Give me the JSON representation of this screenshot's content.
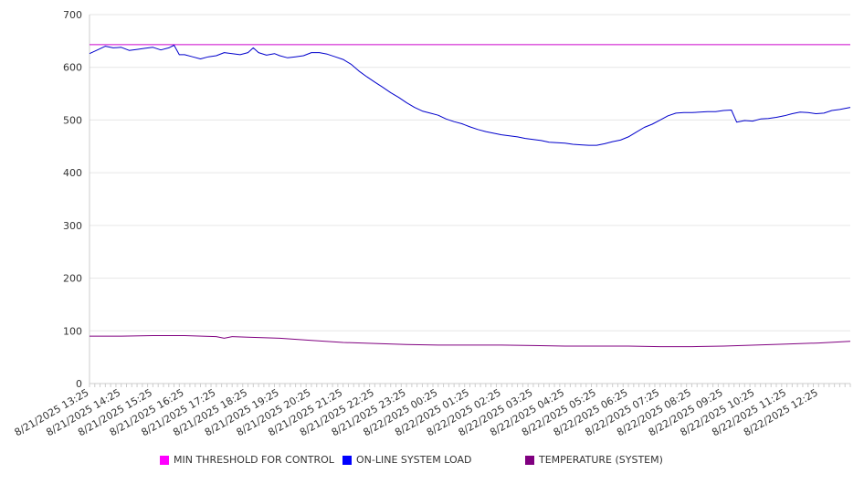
{
  "chart_data": {
    "type": "line",
    "title": "",
    "xlabel": "",
    "ylabel": "",
    "ylim": [
      0,
      700
    ],
    "y_ticks": [
      0,
      100,
      200,
      300,
      400,
      500,
      600,
      700
    ],
    "grid": "horizontal",
    "legend_position": "bottom",
    "x_tick_labels": [
      "8/21/2025 13:25",
      "8/21/2025 14:25",
      "8/21/2025 15:25",
      "8/21/2025 16:25",
      "8/21/2025 17:25",
      "8/21/2025 18:25",
      "8/21/2025 19:25",
      "8/21/2025 20:25",
      "8/21/2025 21:25",
      "8/21/2025 22:25",
      "8/21/2025 23:25",
      "8/22/2025 00:25",
      "8/22/2025 01:25",
      "8/22/2025 02:25",
      "8/22/2025 03:25",
      "8/22/2025 04:25",
      "8/22/2025 05:25",
      "8/22/2025 06:25",
      "8/22/2025 07:25",
      "8/22/2025 08:25",
      "8/22/2025 09:25",
      "8/22/2025 10:25",
      "8/22/2025 11:25",
      "8/22/2025 12:25"
    ],
    "series": [
      {
        "name": "MIN THRESHOLD FOR CONTROL",
        "color": "#cc00cc",
        "legend_color": "#ff00ff",
        "points": [
          [
            "8/21/2025 13:25",
            643
          ],
          [
            "8/22/2025 13:25",
            643
          ]
        ]
      },
      {
        "name": "ON-LINE SYSTEM LOAD",
        "color": "#0000cc",
        "legend_color": "#0000ff",
        "points": [
          [
            "8/21/2025 13:25",
            626
          ],
          [
            "8/21/2025 13:40",
            633
          ],
          [
            "8/21/2025 13:55",
            640
          ],
          [
            "8/21/2025 14:10",
            637
          ],
          [
            "8/21/2025 14:25",
            638
          ],
          [
            "8/21/2025 14:40",
            632
          ],
          [
            "8/21/2025 14:55",
            634
          ],
          [
            "8/21/2025 15:10",
            636
          ],
          [
            "8/21/2025 15:25",
            638
          ],
          [
            "8/21/2025 15:40",
            633
          ],
          [
            "8/21/2025 15:55",
            637
          ],
          [
            "8/21/2025 16:05",
            642
          ],
          [
            "8/21/2025 16:15",
            624
          ],
          [
            "8/21/2025 16:25",
            624
          ],
          [
            "8/21/2025 16:40",
            620
          ],
          [
            "8/21/2025 16:55",
            616
          ],
          [
            "8/21/2025 17:10",
            620
          ],
          [
            "8/21/2025 17:25",
            622
          ],
          [
            "8/21/2025 17:40",
            628
          ],
          [
            "8/21/2025 17:55",
            626
          ],
          [
            "8/21/2025 18:10",
            624
          ],
          [
            "8/21/2025 18:25",
            628
          ],
          [
            "8/21/2025 18:35",
            637
          ],
          [
            "8/21/2025 18:45",
            628
          ],
          [
            "8/21/2025 19:00",
            623
          ],
          [
            "8/21/2025 19:15",
            626
          ],
          [
            "8/21/2025 19:25",
            622
          ],
          [
            "8/21/2025 19:40",
            618
          ],
          [
            "8/21/2025 19:55",
            620
          ],
          [
            "8/21/2025 20:10",
            622
          ],
          [
            "8/21/2025 20:25",
            628
          ],
          [
            "8/21/2025 20:40",
            628
          ],
          [
            "8/21/2025 20:55",
            625
          ],
          [
            "8/21/2025 21:10",
            620
          ],
          [
            "8/21/2025 21:25",
            615
          ],
          [
            "8/21/2025 21:40",
            606
          ],
          [
            "8/21/2025 21:55",
            593
          ],
          [
            "8/21/2025 22:10",
            582
          ],
          [
            "8/21/2025 22:25",
            572
          ],
          [
            "8/21/2025 22:40",
            562
          ],
          [
            "8/21/2025 22:55",
            552
          ],
          [
            "8/21/2025 23:10",
            543
          ],
          [
            "8/21/2025 23:25",
            533
          ],
          [
            "8/21/2025 23:40",
            524
          ],
          [
            "8/21/2025 23:55",
            517
          ],
          [
            "8/22/2025 00:10",
            513
          ],
          [
            "8/22/2025 00:25",
            509
          ],
          [
            "8/22/2025 00:40",
            502
          ],
          [
            "8/22/2025 00:55",
            497
          ],
          [
            "8/22/2025 01:10",
            493
          ],
          [
            "8/22/2025 01:25",
            487
          ],
          [
            "8/22/2025 01:40",
            482
          ],
          [
            "8/22/2025 01:55",
            478
          ],
          [
            "8/22/2025 02:10",
            475
          ],
          [
            "8/22/2025 02:25",
            472
          ],
          [
            "8/22/2025 02:40",
            470
          ],
          [
            "8/22/2025 02:55",
            468
          ],
          [
            "8/22/2025 03:10",
            465
          ],
          [
            "8/22/2025 03:25",
            463
          ],
          [
            "8/22/2025 03:40",
            461
          ],
          [
            "8/22/2025 03:55",
            458
          ],
          [
            "8/22/2025 04:10",
            457
          ],
          [
            "8/22/2025 04:25",
            456
          ],
          [
            "8/22/2025 04:40",
            454
          ],
          [
            "8/22/2025 04:55",
            453
          ],
          [
            "8/22/2025 05:10",
            452
          ],
          [
            "8/22/2025 05:25",
            452
          ],
          [
            "8/22/2025 05:40",
            455
          ],
          [
            "8/22/2025 05:55",
            459
          ],
          [
            "8/22/2025 06:10",
            462
          ],
          [
            "8/22/2025 06:25",
            468
          ],
          [
            "8/22/2025 06:40",
            477
          ],
          [
            "8/22/2025 06:55",
            486
          ],
          [
            "8/22/2025 07:10",
            492
          ],
          [
            "8/22/2025 07:25",
            500
          ],
          [
            "8/22/2025 07:40",
            508
          ],
          [
            "8/22/2025 07:55",
            513
          ],
          [
            "8/22/2025 08:10",
            514
          ],
          [
            "8/22/2025 08:25",
            514
          ],
          [
            "8/22/2025 08:40",
            515
          ],
          [
            "8/22/2025 08:55",
            516
          ],
          [
            "8/22/2025 09:10",
            516
          ],
          [
            "8/22/2025 09:25",
            518
          ],
          [
            "8/22/2025 09:40",
            519
          ],
          [
            "8/22/2025 09:50",
            496
          ],
          [
            "8/22/2025 10:05",
            499
          ],
          [
            "8/22/2025 10:20",
            498
          ],
          [
            "8/22/2025 10:35",
            502
          ],
          [
            "8/22/2025 10:50",
            503
          ],
          [
            "8/22/2025 11:05",
            505
          ],
          [
            "8/22/2025 11:20",
            508
          ],
          [
            "8/22/2025 11:35",
            512
          ],
          [
            "8/22/2025 11:50",
            515
          ],
          [
            "8/22/2025 12:05",
            514
          ],
          [
            "8/22/2025 12:20",
            512
          ],
          [
            "8/22/2025 12:35",
            513
          ],
          [
            "8/22/2025 12:50",
            518
          ],
          [
            "8/22/2025 13:05",
            520
          ],
          [
            "8/22/2025 13:25",
            524
          ]
        ]
      },
      {
        "name": "TEMPERATURE (SYSTEM)",
        "color": "#800080",
        "legend_color": "#800080",
        "points": [
          [
            "8/21/2025 13:25",
            90
          ],
          [
            "8/21/2025 14:25",
            90
          ],
          [
            "8/21/2025 15:25",
            91
          ],
          [
            "8/21/2025 16:25",
            91
          ],
          [
            "8/21/2025 17:25",
            89
          ],
          [
            "8/21/2025 17:40",
            86
          ],
          [
            "8/21/2025 17:55",
            89
          ],
          [
            "8/21/2025 18:25",
            88
          ],
          [
            "8/21/2025 19:25",
            86
          ],
          [
            "8/21/2025 20:25",
            82
          ],
          [
            "8/21/2025 21:25",
            78
          ],
          [
            "8/21/2025 22:25",
            76
          ],
          [
            "8/21/2025 23:25",
            74
          ],
          [
            "8/22/2025 00:25",
            73
          ],
          [
            "8/22/2025 01:25",
            73
          ],
          [
            "8/22/2025 02:25",
            73
          ],
          [
            "8/22/2025 03:25",
            72
          ],
          [
            "8/22/2025 04:25",
            71
          ],
          [
            "8/22/2025 05:25",
            71
          ],
          [
            "8/22/2025 06:25",
            71
          ],
          [
            "8/22/2025 07:25",
            70
          ],
          [
            "8/22/2025 08:25",
            70
          ],
          [
            "8/22/2025 09:25",
            71
          ],
          [
            "8/22/2025 10:25",
            73
          ],
          [
            "8/22/2025 11:25",
            75
          ],
          [
            "8/22/2025 12:25",
            77
          ],
          [
            "8/22/2025 13:25",
            80
          ]
        ]
      }
    ]
  },
  "legend": {
    "items": [
      {
        "label": "MIN THRESHOLD FOR CONTROL",
        "color": "#ff00ff"
      },
      {
        "label": "ON-LINE SYSTEM LOAD",
        "color": "#0000ff"
      },
      {
        "label": "TEMPERATURE (SYSTEM)",
        "color": "#800080"
      }
    ]
  }
}
